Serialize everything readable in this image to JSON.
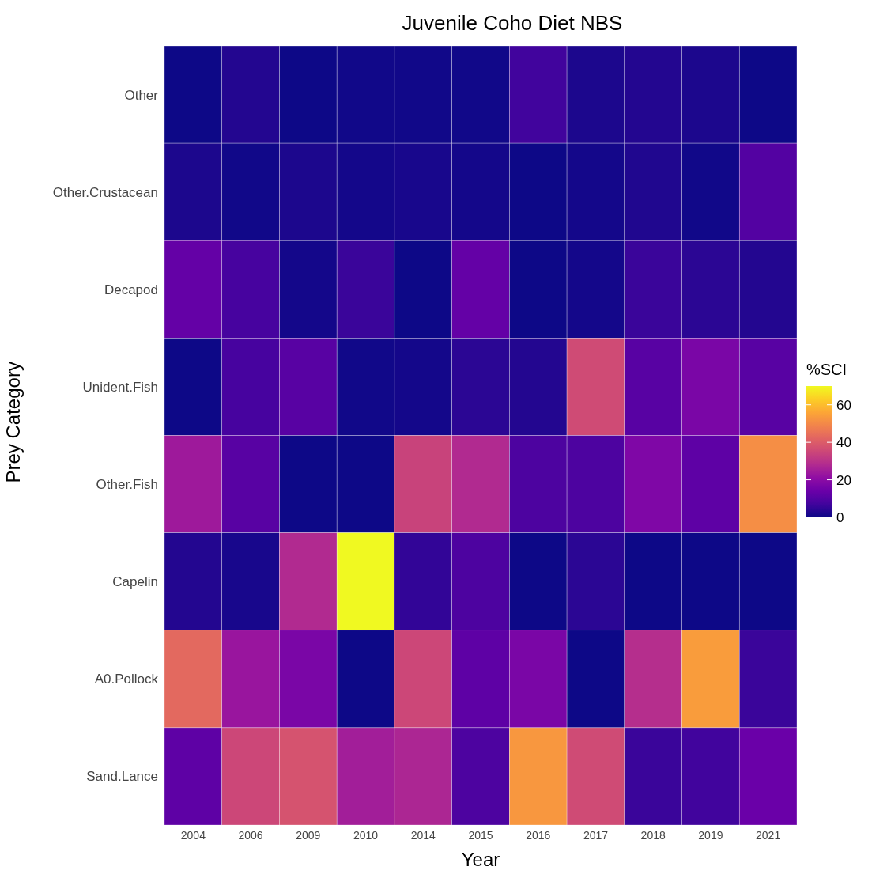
{
  "chart_data": {
    "type": "heatmap",
    "title": "Juvenile Coho Diet NBS",
    "xlabel": "Year",
    "ylabel": "Prey Category",
    "clabel": "%SCI",
    "categories": [
      "2004",
      "2006",
      "2009",
      "2010",
      "2014",
      "2015",
      "2016",
      "2017",
      "2018",
      "2019",
      "2021"
    ],
    "y_categories": [
      "Other",
      "Other.Crustacean",
      "Decapod",
      "Unident.Fish",
      "Other.Fish",
      "Capelin",
      "A0.Pollock",
      "Sand.Lance"
    ],
    "cells": [
      [
        0,
        3,
        0,
        0.5,
        0.5,
        0.5,
        7,
        2,
        3,
        2,
        0
      ],
      [
        2,
        0.5,
        2,
        1,
        1.5,
        1,
        0,
        1,
        2.5,
        0.5,
        10
      ],
      [
        13,
        8,
        1,
        6,
        0,
        13,
        0,
        1,
        6,
        4,
        3
      ],
      [
        0,
        8,
        11,
        0.5,
        1,
        4,
        3,
        36,
        11,
        17,
        11
      ],
      [
        24,
        11,
        0,
        0,
        34,
        28,
        9,
        9,
        18,
        12,
        51
      ],
      [
        3,
        1.5,
        28,
        70,
        5,
        9,
        0,
        4,
        0,
        0,
        0
      ],
      [
        43,
        23,
        17,
        0,
        35,
        12,
        17,
        0,
        29,
        54,
        6
      ],
      [
        12,
        35,
        38,
        25,
        27,
        9,
        53,
        36,
        6,
        7,
        14
      ]
    ],
    "clim": [
      0,
      70
    ],
    "cticks": [
      0,
      20,
      40,
      60
    ]
  }
}
